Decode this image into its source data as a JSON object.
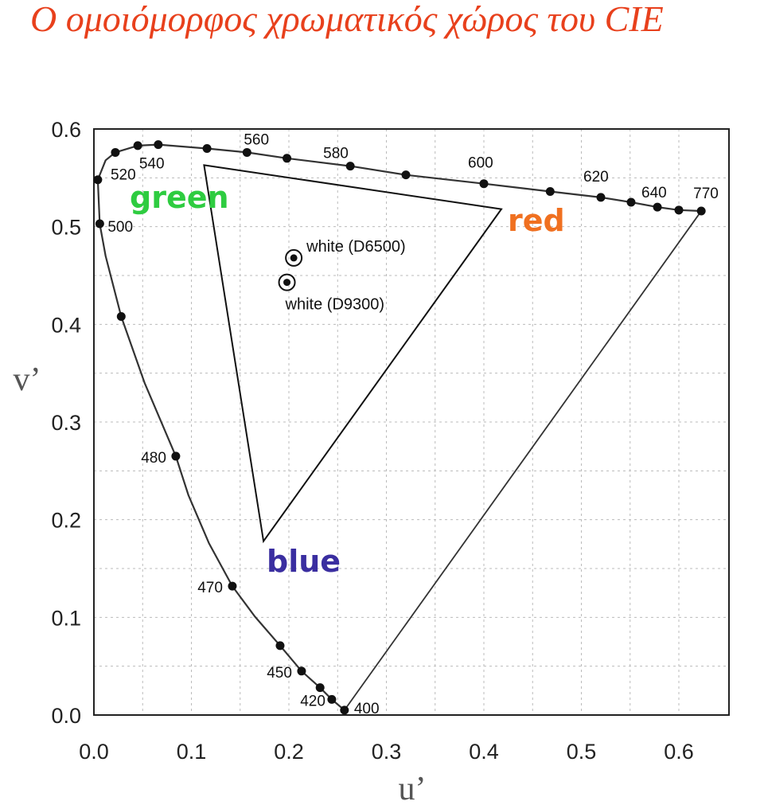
{
  "title": "Ο ομοιόμορφος χρωματικός χώρος του CIE",
  "colors": {
    "title": "#e8401c",
    "green": "#2ecc40",
    "red": "#f07020",
    "blue": "#3a2ea0",
    "curve": "#333333",
    "grid": "#bbbbbb"
  },
  "chart_data": {
    "type": "scatter",
    "xlabel": "u’",
    "ylabel": "v’",
    "xlim": [
      0.0,
      0.65
    ],
    "ylim": [
      0.0,
      0.6
    ],
    "xticks": [
      "0.0",
      "0.1",
      "0.2",
      "0.3",
      "0.4",
      "0.5",
      "0.6"
    ],
    "yticks": [
      "0.0",
      "0.1",
      "0.2",
      "0.3",
      "0.4",
      "0.5",
      "0.6"
    ],
    "grid": true,
    "spectral_locus": [
      [
        0.257,
        0.005
      ],
      [
        0.244,
        0.016
      ],
      [
        0.232,
        0.028
      ],
      [
        0.213,
        0.045
      ],
      [
        0.191,
        0.071
      ],
      [
        0.165,
        0.101
      ],
      [
        0.142,
        0.132
      ],
      [
        0.118,
        0.176
      ],
      [
        0.097,
        0.225
      ],
      [
        0.084,
        0.265
      ],
      [
        0.052,
        0.34
      ],
      [
        0.028,
        0.408
      ],
      [
        0.012,
        0.47
      ],
      [
        0.006,
        0.503
      ],
      [
        0.004,
        0.548
      ],
      [
        0.012,
        0.568
      ],
      [
        0.022,
        0.576
      ],
      [
        0.045,
        0.583
      ],
      [
        0.066,
        0.584
      ],
      [
        0.116,
        0.58
      ],
      [
        0.157,
        0.576
      ],
      [
        0.198,
        0.57
      ],
      [
        0.263,
        0.562
      ],
      [
        0.32,
        0.553
      ],
      [
        0.4,
        0.544
      ],
      [
        0.468,
        0.536
      ],
      [
        0.52,
        0.53
      ],
      [
        0.551,
        0.525
      ],
      [
        0.578,
        0.52
      ],
      [
        0.6,
        0.517
      ],
      [
        0.623,
        0.516
      ]
    ],
    "locus_points": [
      {
        "u": 0.257,
        "v": 0.005,
        "label": "400"
      },
      {
        "u": 0.244,
        "v": 0.016,
        "label": "420"
      },
      {
        "u": 0.232,
        "v": 0.028,
        "label": ""
      },
      {
        "u": 0.213,
        "v": 0.045,
        "label": "450"
      },
      {
        "u": 0.191,
        "v": 0.071,
        "label": ""
      },
      {
        "u": 0.142,
        "v": 0.132,
        "label": "470"
      },
      {
        "u": 0.084,
        "v": 0.265,
        "label": "480"
      },
      {
        "u": 0.028,
        "v": 0.408,
        "label": ""
      },
      {
        "u": 0.006,
        "v": 0.503,
        "label": "500"
      },
      {
        "u": 0.004,
        "v": 0.548,
        "label": ""
      },
      {
        "u": 0.022,
        "v": 0.576,
        "label": "520"
      },
      {
        "u": 0.045,
        "v": 0.583,
        "label": ""
      },
      {
        "u": 0.066,
        "v": 0.584,
        "label": "540"
      },
      {
        "u": 0.116,
        "v": 0.58,
        "label": ""
      },
      {
        "u": 0.157,
        "v": 0.576,
        "label": "560"
      },
      {
        "u": 0.198,
        "v": 0.57,
        "label": ""
      },
      {
        "u": 0.263,
        "v": 0.562,
        "label": "580"
      },
      {
        "u": 0.32,
        "v": 0.553,
        "label": ""
      },
      {
        "u": 0.4,
        "v": 0.544,
        "label": "600"
      },
      {
        "u": 0.468,
        "v": 0.536,
        "label": ""
      },
      {
        "u": 0.52,
        "v": 0.53,
        "label": "620"
      },
      {
        "u": 0.551,
        "v": 0.525,
        "label": ""
      },
      {
        "u": 0.578,
        "v": 0.52,
        "label": "640"
      },
      {
        "u": 0.6,
        "v": 0.517,
        "label": ""
      },
      {
        "u": 0.623,
        "v": 0.516,
        "label": "770"
      }
    ],
    "gamut_triangle": {
      "green": {
        "u": 0.113,
        "v": 0.563
      },
      "red": {
        "u": 0.418,
        "v": 0.518
      },
      "blue": {
        "u": 0.174,
        "v": 0.178
      }
    },
    "primary_labels": {
      "green": "green",
      "red": "red",
      "blue": "blue"
    },
    "white_points": [
      {
        "name": "white (D6500)",
        "u": 0.205,
        "v": 0.468
      },
      {
        "name": "white (D9300)",
        "u": 0.198,
        "v": 0.443
      }
    ]
  }
}
